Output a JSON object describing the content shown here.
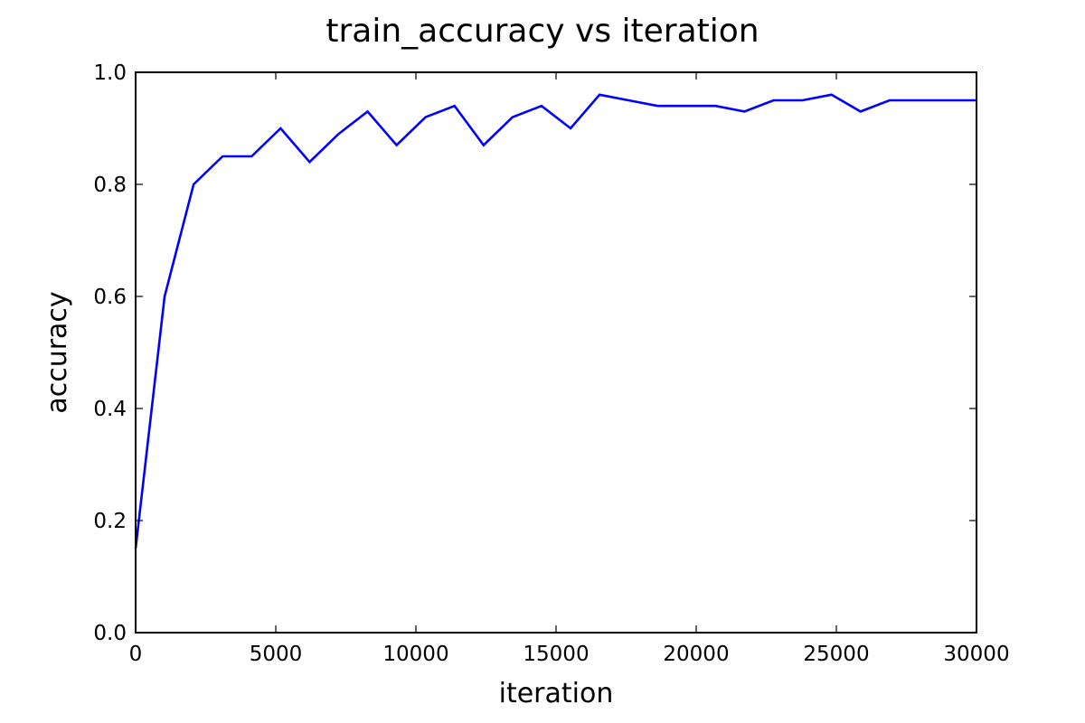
{
  "chart_data": {
    "type": "line",
    "title": "train_accuracy vs iteration",
    "xlabel": "iteration",
    "ylabel": "accuracy",
    "xlim": [
      0,
      30000
    ],
    "ylim": [
      0.0,
      1.0
    ],
    "xticks": [
      0,
      5000,
      10000,
      15000,
      20000,
      25000,
      30000
    ],
    "xtick_labels": [
      "0",
      "5000",
      "10000",
      "15000",
      "20000",
      "25000",
      "30000"
    ],
    "yticks": [
      0.0,
      0.2,
      0.4,
      0.6,
      0.8,
      1.0
    ],
    "ytick_labels": [
      "0.0",
      "0.2",
      "0.4",
      "0.6",
      "0.8",
      "1.0"
    ],
    "grid": false,
    "series": [
      {
        "color": "#0000ff",
        "x": [
          0,
          1034,
          2069,
          3103,
          4138,
          5172,
          6207,
          7241,
          8276,
          9310,
          10345,
          11379,
          12414,
          13448,
          14483,
          15517,
          16552,
          17586,
          18621,
          19655,
          20690,
          21724,
          22759,
          23793,
          24828,
          25862,
          26897,
          27931,
          28966,
          30000
        ],
        "y": [
          0.15,
          0.6,
          0.8,
          0.85,
          0.85,
          0.9,
          0.84,
          0.89,
          0.93,
          0.87,
          0.92,
          0.94,
          0.87,
          0.92,
          0.94,
          0.9,
          0.96,
          0.95,
          0.94,
          0.94,
          0.94,
          0.93,
          0.95,
          0.95,
          0.96,
          0.93,
          0.95,
          0.95,
          0.95,
          0.95
        ]
      }
    ]
  }
}
